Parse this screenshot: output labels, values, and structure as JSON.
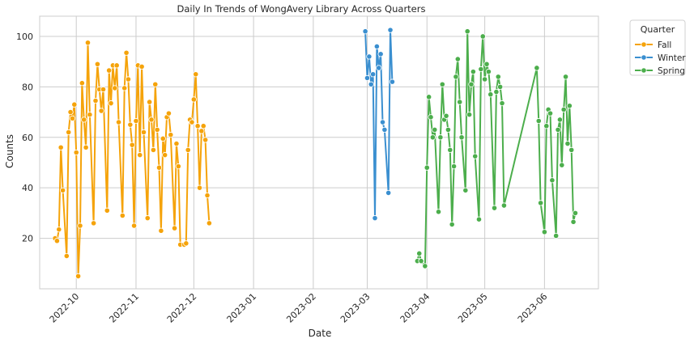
{
  "chart_data": {
    "type": "line",
    "title": "Daily In Trends of WongAvery Library Across Quarters",
    "xlabel": "Date",
    "ylabel": "Counts",
    "x_axis": {
      "type": "date",
      "range": [
        "2022-09-12",
        "2023-06-29"
      ],
      "ticks": [
        {
          "date": "2022-10-01",
          "label": "2022-10"
        },
        {
          "date": "2022-11-01",
          "label": "2022-11"
        },
        {
          "date": "2022-12-01",
          "label": "2022-12"
        },
        {
          "date": "2023-01-01",
          "label": "2023-01"
        },
        {
          "date": "2023-02-01",
          "label": "2023-02"
        },
        {
          "date": "2023-03-01",
          "label": "2023-03"
        },
        {
          "date": "2023-04-01",
          "label": "2023-04"
        },
        {
          "date": "2023-05-01",
          "label": "2023-05"
        },
        {
          "date": "2023-06-01",
          "label": "2023-06"
        }
      ]
    },
    "y_axis": {
      "range": [
        0,
        108
      ],
      "ticks": [
        {
          "value": 20,
          "label": "20"
        },
        {
          "value": 40,
          "label": "40"
        },
        {
          "value": 60,
          "label": "60"
        },
        {
          "value": 80,
          "label": "80"
        },
        {
          "value": 100,
          "label": "100"
        }
      ]
    },
    "grid": true,
    "legend": {
      "title": "Quarter",
      "placement": "outside-top-right"
    },
    "series": [
      {
        "name": "Fall",
        "color": "#f5a30a",
        "points": [
          {
            "x": "2022-09-20",
            "y": 20
          },
          {
            "x": "2022-09-21",
            "y": 19
          },
          {
            "x": "2022-09-22",
            "y": 23.5
          },
          {
            "x": "2022-09-23",
            "y": 56
          },
          {
            "x": "2022-09-24",
            "y": 39
          },
          {
            "x": "2022-09-26",
            "y": 13
          },
          {
            "x": "2022-09-27",
            "y": 62
          },
          {
            "x": "2022-09-28",
            "y": 70
          },
          {
            "x": "2022-09-29",
            "y": 67.5
          },
          {
            "x": "2022-09-30",
            "y": 73
          },
          {
            "x": "2022-10-01",
            "y": 54
          },
          {
            "x": "2022-10-02",
            "y": 5
          },
          {
            "x": "2022-10-03",
            "y": 25
          },
          {
            "x": "2022-10-04",
            "y": 81.5
          },
          {
            "x": "2022-10-05",
            "y": 67
          },
          {
            "x": "2022-10-06",
            "y": 56
          },
          {
            "x": "2022-10-07",
            "y": 97.5
          },
          {
            "x": "2022-10-08",
            "y": 69
          },
          {
            "x": "2022-10-10",
            "y": 26
          },
          {
            "x": "2022-10-11",
            "y": 74.5
          },
          {
            "x": "2022-10-12",
            "y": 89
          },
          {
            "x": "2022-10-13",
            "y": 79
          },
          {
            "x": "2022-10-14",
            "y": 70.5
          },
          {
            "x": "2022-10-15",
            "y": 79
          },
          {
            "x": "2022-10-17",
            "y": 31
          },
          {
            "x": "2022-10-18",
            "y": 86.5
          },
          {
            "x": "2022-10-19",
            "y": 73.5
          },
          {
            "x": "2022-10-20",
            "y": 88.5
          },
          {
            "x": "2022-10-21",
            "y": 79.5
          },
          {
            "x": "2022-10-22",
            "y": 88.5
          },
          {
            "x": "2022-10-23",
            "y": 66
          },
          {
            "x": "2022-10-25",
            "y": 29
          },
          {
            "x": "2022-10-26",
            "y": 79.5
          },
          {
            "x": "2022-10-27",
            "y": 93.5
          },
          {
            "x": "2022-10-28",
            "y": 83
          },
          {
            "x": "2022-10-29",
            "y": 65
          },
          {
            "x": "2022-10-30",
            "y": 57
          },
          {
            "x": "2022-10-31",
            "y": 25
          },
          {
            "x": "2022-11-01",
            "y": 66.5
          },
          {
            "x": "2022-11-02",
            "y": 88.5
          },
          {
            "x": "2022-11-03",
            "y": 53
          },
          {
            "x": "2022-11-04",
            "y": 88
          },
          {
            "x": "2022-11-05",
            "y": 62
          },
          {
            "x": "2022-11-07",
            "y": 28
          },
          {
            "x": "2022-11-08",
            "y": 74
          },
          {
            "x": "2022-11-09",
            "y": 67
          },
          {
            "x": "2022-11-10",
            "y": 55
          },
          {
            "x": "2022-11-11",
            "y": 81
          },
          {
            "x": "2022-11-12",
            "y": 63
          },
          {
            "x": "2022-11-13",
            "y": 48
          },
          {
            "x": "2022-11-14",
            "y": 23
          },
          {
            "x": "2022-11-15",
            "y": 59.5
          },
          {
            "x": "2022-11-16",
            "y": 53
          },
          {
            "x": "2022-11-17",
            "y": 68
          },
          {
            "x": "2022-11-18",
            "y": 69.5
          },
          {
            "x": "2022-11-19",
            "y": 61
          },
          {
            "x": "2022-11-21",
            "y": 24
          },
          {
            "x": "2022-11-22",
            "y": 57.5
          },
          {
            "x": "2022-11-23",
            "y": 48.5
          },
          {
            "x": "2022-11-24",
            "y": 17.5
          },
          {
            "x": "2022-11-26",
            "y": 17.5
          },
          {
            "x": "2022-11-27",
            "y": 18
          },
          {
            "x": "2022-11-28",
            "y": 55
          },
          {
            "x": "2022-11-29",
            "y": 67
          },
          {
            "x": "2022-11-30",
            "y": 66
          },
          {
            "x": "2022-12-01",
            "y": 75
          },
          {
            "x": "2022-12-02",
            "y": 85
          },
          {
            "x": "2022-12-03",
            "y": 64.5
          },
          {
            "x": "2022-12-04",
            "y": 40
          },
          {
            "x": "2022-12-05",
            "y": 62.5
          },
          {
            "x": "2022-12-06",
            "y": 64.5
          },
          {
            "x": "2022-12-07",
            "y": 59
          },
          {
            "x": "2022-12-08",
            "y": 37
          },
          {
            "x": "2022-12-09",
            "y": 26
          }
        ]
      },
      {
        "name": "Winter",
        "color": "#3a8fd0",
        "points": [
          {
            "x": "2023-02-28",
            "y": 102
          },
          {
            "x": "2023-03-01",
            "y": 83.5
          },
          {
            "x": "2023-03-02",
            "y": 92
          },
          {
            "x": "2023-03-03",
            "y": 81
          },
          {
            "x": "2023-03-04",
            "y": 85
          },
          {
            "x": "2023-03-05",
            "y": 28
          },
          {
            "x": "2023-03-06",
            "y": 96
          },
          {
            "x": "2023-03-07",
            "y": 87.5
          },
          {
            "x": "2023-03-08",
            "y": 93
          },
          {
            "x": "2023-03-09",
            "y": 66
          },
          {
            "x": "2023-03-10",
            "y": 63
          },
          {
            "x": "2023-03-12",
            "y": 38
          },
          {
            "x": "2023-03-13",
            "y": 102.5
          },
          {
            "x": "2023-03-14",
            "y": 82
          }
        ]
      },
      {
        "name": "Spring",
        "color": "#4cae4c",
        "points": [
          {
            "x": "2023-03-27",
            "y": 11
          },
          {
            "x": "2023-03-28",
            "y": 14
          },
          {
            "x": "2023-03-29",
            "y": 11
          },
          {
            "x": "2023-03-31",
            "y": 9
          },
          {
            "x": "2023-04-01",
            "y": 48
          },
          {
            "x": "2023-04-02",
            "y": 76
          },
          {
            "x": "2023-04-03",
            "y": 68
          },
          {
            "x": "2023-04-04",
            "y": 60
          },
          {
            "x": "2023-04-05",
            "y": 63
          },
          {
            "x": "2023-04-07",
            "y": 30.5
          },
          {
            "x": "2023-04-08",
            "y": 60
          },
          {
            "x": "2023-04-09",
            "y": 81
          },
          {
            "x": "2023-04-10",
            "y": 67
          },
          {
            "x": "2023-04-11",
            "y": 68.5
          },
          {
            "x": "2023-04-12",
            "y": 63
          },
          {
            "x": "2023-04-13",
            "y": 55
          },
          {
            "x": "2023-04-14",
            "y": 25.5
          },
          {
            "x": "2023-04-15",
            "y": 48.5
          },
          {
            "x": "2023-04-16",
            "y": 84
          },
          {
            "x": "2023-04-17",
            "y": 91
          },
          {
            "x": "2023-04-18",
            "y": 74
          },
          {
            "x": "2023-04-19",
            "y": 60
          },
          {
            "x": "2023-04-21",
            "y": 39
          },
          {
            "x": "2023-04-22",
            "y": 102
          },
          {
            "x": "2023-04-23",
            "y": 69
          },
          {
            "x": "2023-04-24",
            "y": 81
          },
          {
            "x": "2023-04-25",
            "y": 86
          },
          {
            "x": "2023-04-26",
            "y": 52.5
          },
          {
            "x": "2023-04-28",
            "y": 27.5
          },
          {
            "x": "2023-04-29",
            "y": 87
          },
          {
            "x": "2023-04-30",
            "y": 100
          },
          {
            "x": "2023-05-01",
            "y": 83
          },
          {
            "x": "2023-05-02",
            "y": 89
          },
          {
            "x": "2023-05-03",
            "y": 86
          },
          {
            "x": "2023-05-04",
            "y": 77
          },
          {
            "x": "2023-05-06",
            "y": 32
          },
          {
            "x": "2023-05-07",
            "y": 78
          },
          {
            "x": "2023-05-08",
            "y": 84
          },
          {
            "x": "2023-05-09",
            "y": 80
          },
          {
            "x": "2023-05-10",
            "y": 73.5
          },
          {
            "x": "2023-05-11",
            "y": 33
          },
          {
            "x": "2023-05-28",
            "y": 87.5
          },
          {
            "x": "2023-05-29",
            "y": 66.5
          },
          {
            "x": "2023-05-30",
            "y": 34
          },
          {
            "x": "2023-06-01",
            "y": 22.5
          },
          {
            "x": "2023-06-02",
            "y": 64.5
          },
          {
            "x": "2023-06-03",
            "y": 71
          },
          {
            "x": "2023-06-04",
            "y": 69.5
          },
          {
            "x": "2023-06-05",
            "y": 43
          },
          {
            "x": "2023-06-07",
            "y": 21
          },
          {
            "x": "2023-06-08",
            "y": 63
          },
          {
            "x": "2023-06-09",
            "y": 67
          },
          {
            "x": "2023-06-10",
            "y": 49
          },
          {
            "x": "2023-06-11",
            "y": 71
          },
          {
            "x": "2023-06-12",
            "y": 84
          },
          {
            "x": "2023-06-13",
            "y": 57.5
          },
          {
            "x": "2023-06-14",
            "y": 72.5
          },
          {
            "x": "2023-06-15",
            "y": 55
          },
          {
            "x": "2023-06-16",
            "y": 26.5
          },
          {
            "x": "2023-06-17",
            "y": 30
          }
        ]
      }
    ]
  }
}
